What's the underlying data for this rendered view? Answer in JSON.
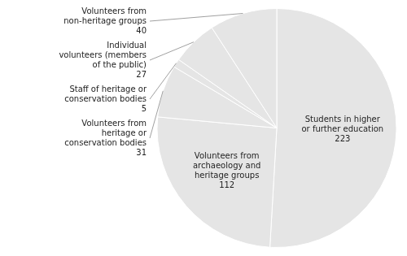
{
  "chart_data": {
    "type": "pie",
    "categories": [
      "Students in higher\nor further education\n223",
      "Volunteers from\narchaeology and\nheritage groups\n112",
      "Volunteers from\nheritage or\nconservation bodies\n31",
      "Staff of heritage or\nconservation bodies\n5",
      "Individual\nvolunteers (members\nof the public)\n27",
      "Volunteers from\nnon-heritage groups\n40"
    ],
    "values": [
      223,
      112,
      31,
      5,
      27,
      40
    ]
  }
}
